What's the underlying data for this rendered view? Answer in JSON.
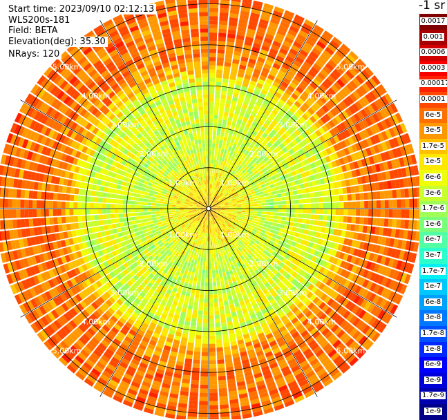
{
  "header": {
    "start_time": "Start time: 2023/09/10 02:12:13",
    "device": "WLS200s-181",
    "field": "Field: BETA",
    "elevation": "Elevation(deg): 35.30",
    "nrays": "NRays: 120"
  },
  "colorbar": {
    "title": "-1 sr",
    "entries": [
      {
        "label": "0.0017",
        "color": "#800000"
      },
      {
        "label": "0.001",
        "color": "#a80000"
      },
      {
        "label": "0.0006",
        "color": "#d00000"
      },
      {
        "label": "0.0003",
        "color": "#f80000"
      },
      {
        "label": "0.00017",
        "color": "#ff2000"
      },
      {
        "label": "0.0001",
        "color": "#ff4800"
      },
      {
        "label": "6e-5",
        "color": "#ff7000"
      },
      {
        "label": "3e-5",
        "color": "#ff9800"
      },
      {
        "label": "1.7e-5",
        "color": "#ffc000"
      },
      {
        "label": "1e-5",
        "color": "#ffe800"
      },
      {
        "label": "6e-6",
        "color": "#eeff09"
      },
      {
        "label": "3e-6",
        "color": "#c8ff2f"
      },
      {
        "label": "1.7e-6",
        "color": "#a0ff57"
      },
      {
        "label": "1e-6",
        "color": "#7aff7d"
      },
      {
        "label": "6e-7",
        "color": "#53ffa4"
      },
      {
        "label": "3e-7",
        "color": "#2cffcb"
      },
      {
        "label": "1.7e-7",
        "color": "#06f0f1"
      },
      {
        "label": "1e-7",
        "color": "#00c8ff"
      },
      {
        "label": "6e-8",
        "color": "#00a0ff"
      },
      {
        "label": "3e-8",
        "color": "#0078ff"
      },
      {
        "label": "1.7e-8",
        "color": "#0050ff"
      },
      {
        "label": "1e-8",
        "color": "#0028ff"
      },
      {
        "label": "6e-9",
        "color": "#0000ff"
      },
      {
        "label": "3e-9",
        "color": "#0000d8"
      },
      {
        "label": "1.7e-9",
        "color": "#0000b0"
      },
      {
        "label": "1e-9",
        "color": "#000088"
      }
    ]
  },
  "chart_data": {
    "type": "heatmap",
    "projection": "polar",
    "field": "BETA",
    "nrays": 120,
    "elevation_deg": 35.3,
    "range_rings_km": [
      1,
      2,
      3,
      4,
      5
    ],
    "ring_labels": [
      "1.00km",
      "2.00km",
      "3.00km",
      "4.00km",
      "5.00km"
    ],
    "spoke_count": 12,
    "max_range_km": 5.2,
    "value_levels": [
      "1e-9",
      "1.7e-9",
      "3e-9",
      "6e-9",
      "1e-8",
      "1.7e-8",
      "3e-8",
      "6e-8",
      "1e-7",
      "1.7e-7",
      "3e-7",
      "6e-7",
      "1e-6",
      "1.7e-6",
      "3e-6",
      "6e-6",
      "1e-5",
      "1.7e-5",
      "3e-5",
      "6e-5",
      "0.0001",
      "0.00017",
      "0.0003",
      "0.0006",
      "0.001",
      "0.0017"
    ],
    "range_profile": [
      {
        "range_km": 0.0,
        "level": 17
      },
      {
        "range_km": 0.5,
        "level": 16
      },
      {
        "range_km": 1.0,
        "level": 15
      },
      {
        "range_km": 1.5,
        "level": 14
      },
      {
        "range_km": 2.0,
        "level": 14
      },
      {
        "range_km": 2.5,
        "level": 15
      },
      {
        "range_km": 3.0,
        "level": 14
      },
      {
        "range_km": 3.5,
        "level": 18
      },
      {
        "range_km": 4.0,
        "level": 19
      },
      {
        "range_km": 4.5,
        "level": 19
      },
      {
        "range_km": 5.0,
        "level": 19
      }
    ],
    "grid": true
  }
}
